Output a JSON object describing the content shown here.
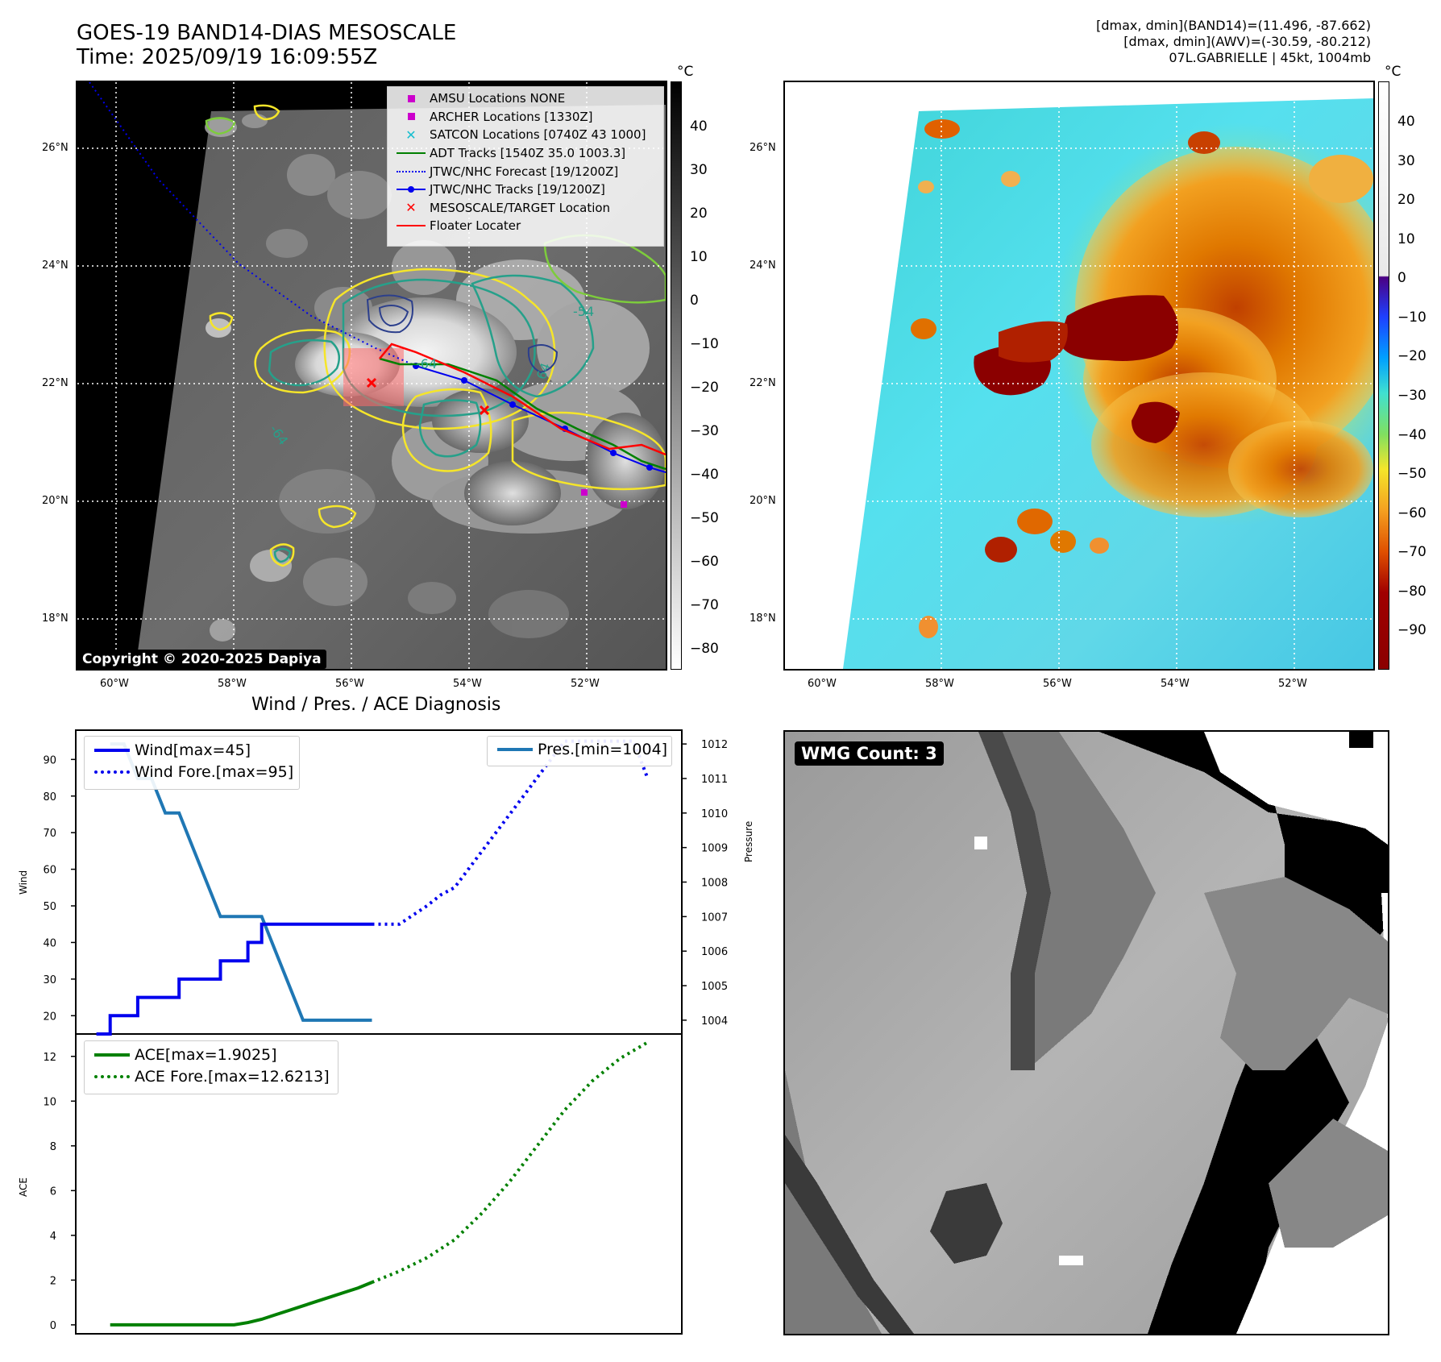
{
  "header": {
    "title_line1": "GOES-19 BAND14-DIAS MESOSCALE",
    "title_line2": "Time: 2025/09/19 16:09:55Z",
    "info_line1": "[dmax, dmin](BAND14)=(11.496, -87.662)",
    "info_line2": "[dmax, dmin](AWV)=(-30.59, -80.212)",
    "info_line3": "07L.GABRIELLE | 45kt, 1004mb"
  },
  "map": {
    "lat_labels": [
      "26°N",
      "24°N",
      "22°N",
      "20°N",
      "18°N"
    ],
    "lon_labels": [
      "60°W",
      "58°W",
      "56°W",
      "54°W",
      "52°W"
    ],
    "copyright": "Copyright © 2020-2025 Dapiya",
    "contour_label_a": "-54",
    "contour_label_b": "-64",
    "contour_label_c": "64",
    "contour_label_d": "-64",
    "legend": [
      {
        "label": "AMSU Locations NONE",
        "symbol": "magenta-square"
      },
      {
        "label": "ARCHER Locations [1330Z]",
        "symbol": "magenta-square"
      },
      {
        "label": "SATCON Locations [0740Z 43 1000]",
        "symbol": "cyan-x"
      },
      {
        "label": "ADT Tracks [1540Z 35.0 1003.3]",
        "symbol": "green-line"
      },
      {
        "label": "JTWC/NHC Forecast [19/1200Z]",
        "symbol": "blue-dotted-line"
      },
      {
        "label": "JTWC/NHC Tracks [19/1200Z]",
        "symbol": "blue-line-dot"
      },
      {
        "label": "MESOSCALE/TARGET Location",
        "symbol": "red-x"
      },
      {
        "label": "Floater Locater",
        "symbol": "red-line"
      }
    ]
  },
  "colorbar_gray": {
    "unit": "°C",
    "ticks": [
      "40",
      "30",
      "20",
      "10",
      "0",
      "−10",
      "−20",
      "−30",
      "−40",
      "−50",
      "−60",
      "−70",
      "−80"
    ]
  },
  "colorbar_awv": {
    "unit": "°C",
    "ticks": [
      "40",
      "30",
      "20",
      "10",
      "0",
      "−10",
      "−20",
      "−30",
      "−40",
      "−50",
      "−60",
      "−70",
      "−80",
      "−90"
    ]
  },
  "colors": {
    "wind": "#0000ee",
    "pressure": "#1f77b4",
    "ace": "#008000",
    "contour_yellow": "#f5e52a",
    "contour_green": "#7dcc3c",
    "contour_teal": "#26a08a",
    "contour_navy": "#2c3f8c"
  },
  "diag": {
    "subtitle": "Wind / Pres. / ACE Diagnosis",
    "wind_ylabel": "Wind",
    "pres_ylabel": "Pressure",
    "ace_ylabel": "ACE",
    "legend_wind": "Wind[max=45]",
    "legend_wind_fore": "Wind Fore.[max=95]",
    "legend_pres": "Pres.[min=1004]",
    "legend_ace": "ACE[max=1.9025]",
    "legend_ace_fore": "ACE Fore.[max=12.6213]"
  },
  "wmg": {
    "label": "WMG Count: 3"
  },
  "chart_data": [
    {
      "type": "line",
      "panel": "wind",
      "ylabel": "Wind",
      "ylim": [
        15,
        98
      ],
      "yticks": [
        20,
        30,
        40,
        50,
        60,
        70,
        80,
        90
      ],
      "series": [
        {
          "name": "Wind[max=45]",
          "style": "solid",
          "x": [
            0,
            1,
            1,
            2,
            2,
            3,
            3,
            4,
            4,
            5,
            5,
            6,
            6,
            7,
            7,
            8,
            8,
            9,
            9,
            10,
            10,
            11,
            11,
            12,
            12,
            13,
            13,
            14,
            14,
            15,
            15,
            16,
            16,
            17,
            17,
            18,
            18,
            19,
            19,
            20
          ],
          "values": [
            15,
            15,
            20,
            20,
            20,
            20,
            25,
            25,
            25,
            25,
            25,
            25,
            30,
            30,
            30,
            30,
            30,
            30,
            35,
            35,
            35,
            35,
            40,
            40,
            45,
            45,
            45,
            45,
            45,
            45,
            45,
            45,
            45,
            45,
            45,
            45,
            45,
            45,
            45,
            45
          ]
        },
        {
          "name": "Wind Fore.[max=95]",
          "style": "dotted",
          "x": [
            20,
            21,
            22,
            24,
            25,
            26,
            28,
            30,
            31,
            32,
            33,
            34,
            35,
            36,
            36.5,
            37,
            38,
            39,
            39.5,
            40
          ],
          "values": [
            45,
            45,
            45,
            50,
            53,
            55,
            65,
            75,
            80,
            85,
            90,
            95,
            95,
            95,
            95,
            95,
            95,
            95,
            90,
            85
          ]
        }
      ]
    },
    {
      "type": "line",
      "panel": "pressure",
      "ylabel": "Pressure",
      "ylim": [
        1003.6,
        1012.4
      ],
      "yticks": [
        1004,
        1005,
        1006,
        1007,
        1008,
        1009,
        1010,
        1011,
        1012
      ],
      "series": [
        {
          "name": "Pres.[min=1004]",
          "style": "solid",
          "x": [
            1,
            2,
            3,
            4,
            5,
            6,
            7,
            8,
            9,
            10,
            11,
            12,
            13,
            14,
            15,
            16,
            17,
            18,
            19,
            20
          ],
          "values": [
            1012,
            1012,
            1011,
            1011,
            1010,
            1010,
            1009,
            1008,
            1007,
            1007,
            1007,
            1007,
            1006,
            1005,
            1004,
            1004,
            1004,
            1004,
            1004,
            1004
          ]
        }
      ]
    },
    {
      "type": "line",
      "panel": "ace",
      "ylabel": "ACE",
      "ylim": [
        -0.4,
        13.0
      ],
      "yticks": [
        0,
        2,
        4,
        6,
        8,
        10,
        12
      ],
      "series": [
        {
          "name": "ACE[max=1.9025]",
          "style": "solid",
          "x": [
            1,
            10,
            11,
            12,
            13,
            14,
            15,
            16,
            17,
            18,
            19,
            20
          ],
          "values": [
            0,
            0,
            0.1,
            0.25,
            0.45,
            0.65,
            0.85,
            1.05,
            1.25,
            1.45,
            1.65,
            1.9025
          ]
        },
        {
          "name": "ACE Fore.[max=12.6213]",
          "style": "dotted",
          "x": [
            20,
            22,
            24,
            26,
            28,
            30,
            32,
            34,
            36,
            38,
            40
          ],
          "values": [
            1.9025,
            2.4,
            3.0,
            3.8,
            5.0,
            6.4,
            8.0,
            9.6,
            10.9,
            11.9,
            12.6213
          ]
        }
      ]
    }
  ]
}
